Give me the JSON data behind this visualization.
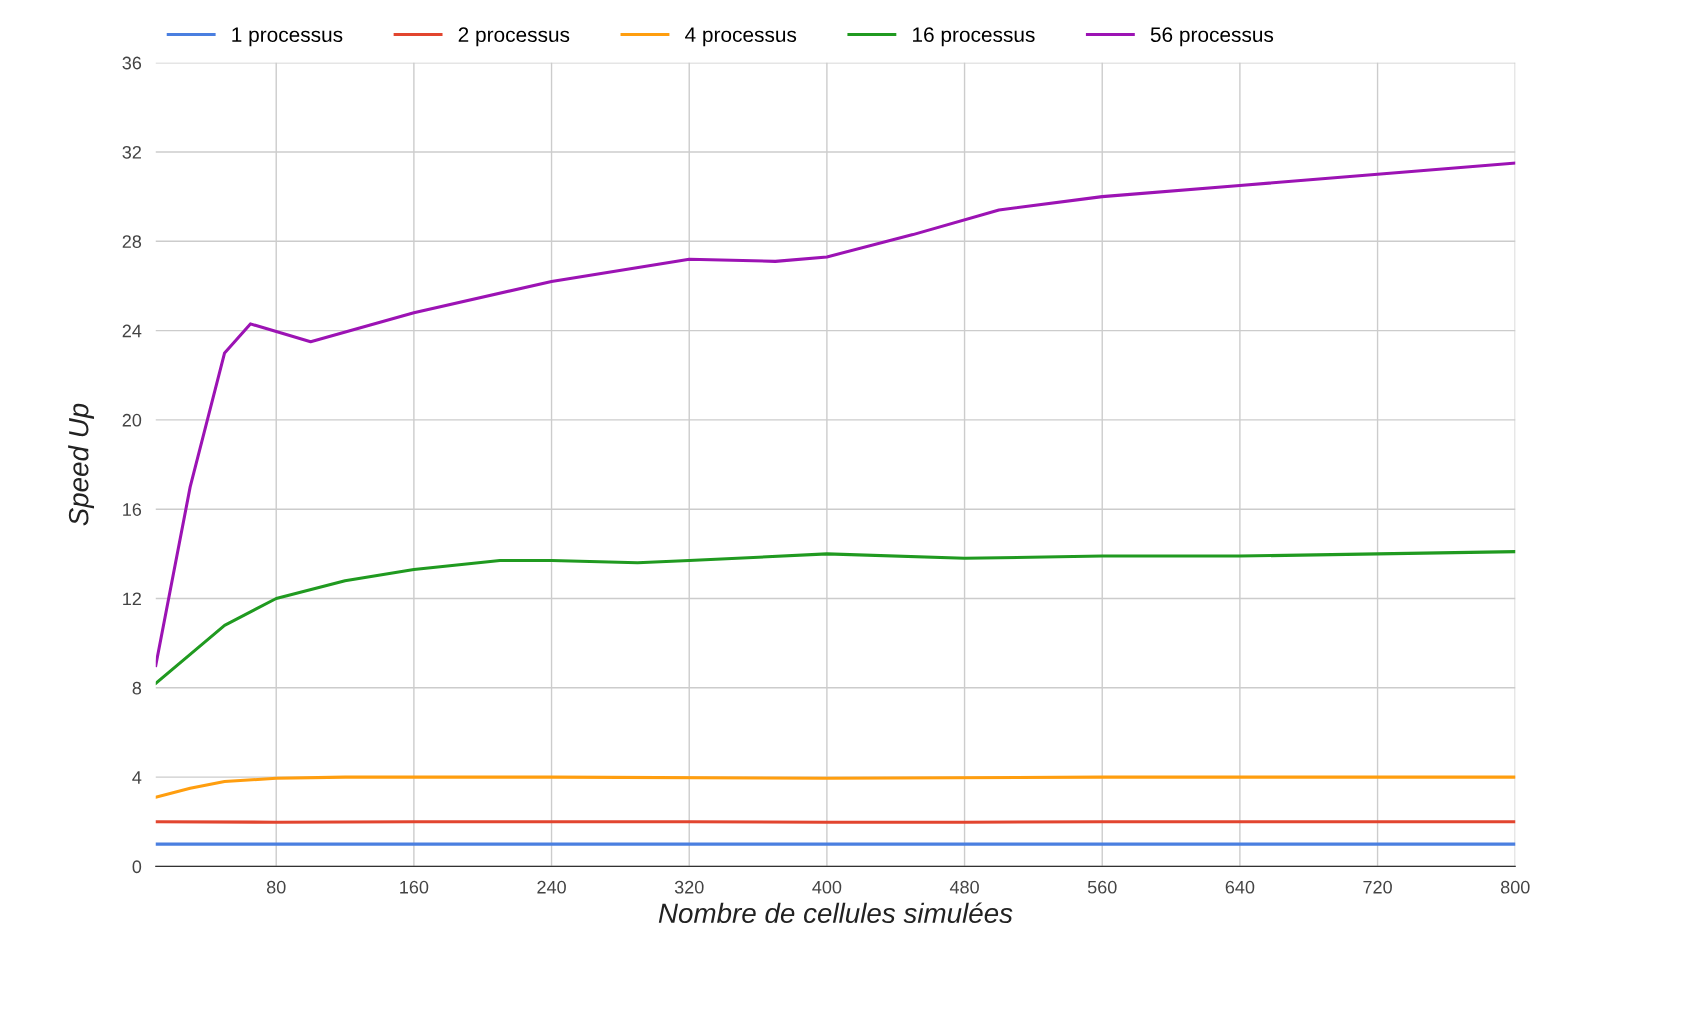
{
  "chart_data": {
    "type": "line",
    "xlabel": "Nombre de cellules simulées",
    "ylabel": "Speed Up",
    "xlim": [
      10,
      800
    ],
    "xticks": [
      80,
      160,
      240,
      320,
      400,
      480,
      560,
      640,
      720,
      800
    ],
    "ylim": [
      0,
      36
    ],
    "yticks": [
      0,
      4,
      8,
      12,
      16,
      20,
      24,
      28,
      32,
      36
    ],
    "grid": true,
    "legend": "top left",
    "marker": "none",
    "line_style": "solid",
    "series": [
      {
        "name": "1 processus",
        "color": "#4a7fe0",
        "x": [
          10,
          80,
          160,
          240,
          320,
          400,
          480,
          560,
          640,
          720,
          800
        ],
        "values": [
          1,
          1,
          1,
          1,
          1,
          1,
          1,
          1,
          1,
          1,
          1
        ]
      },
      {
        "name": "2 processus",
        "color": "#e2452f",
        "x": [
          10,
          80,
          160,
          240,
          320,
          400,
          480,
          560,
          640,
          720,
          800
        ],
        "values": [
          2,
          1.98,
          2,
          2,
          2,
          1.98,
          1.98,
          2,
          2,
          2,
          2
        ]
      },
      {
        "name": "4 processus",
        "color": "#ff9e0f",
        "x": [
          10,
          30,
          50,
          80,
          120,
          240,
          400,
          560,
          800
        ],
        "values": [
          3.1,
          3.5,
          3.8,
          3.95,
          4,
          4,
          3.95,
          4,
          4
        ]
      },
      {
        "name": "16 processus",
        "color": "#209a20",
        "x": [
          10,
          30,
          50,
          80,
          120,
          160,
          210,
          240,
          290,
          320,
          400,
          480,
          560,
          640,
          720,
          800
        ],
        "values": [
          8.2,
          9.5,
          10.8,
          12,
          12.8,
          13.3,
          13.7,
          13.7,
          13.6,
          13.7,
          14,
          13.8,
          13.9,
          13.9,
          14,
          14.1
        ]
      },
      {
        "name": "56 processus",
        "color": "#9c13b4",
        "x": [
          10,
          30,
          50,
          65,
          100,
          160,
          240,
          320,
          370,
          400,
          450,
          500,
          560,
          640,
          720,
          800
        ],
        "values": [
          9,
          17,
          23,
          24.3,
          23.5,
          24.8,
          26.2,
          27.2,
          27.1,
          27.3,
          28.3,
          29.4,
          30,
          30.5,
          31,
          31.5
        ]
      }
    ]
  }
}
